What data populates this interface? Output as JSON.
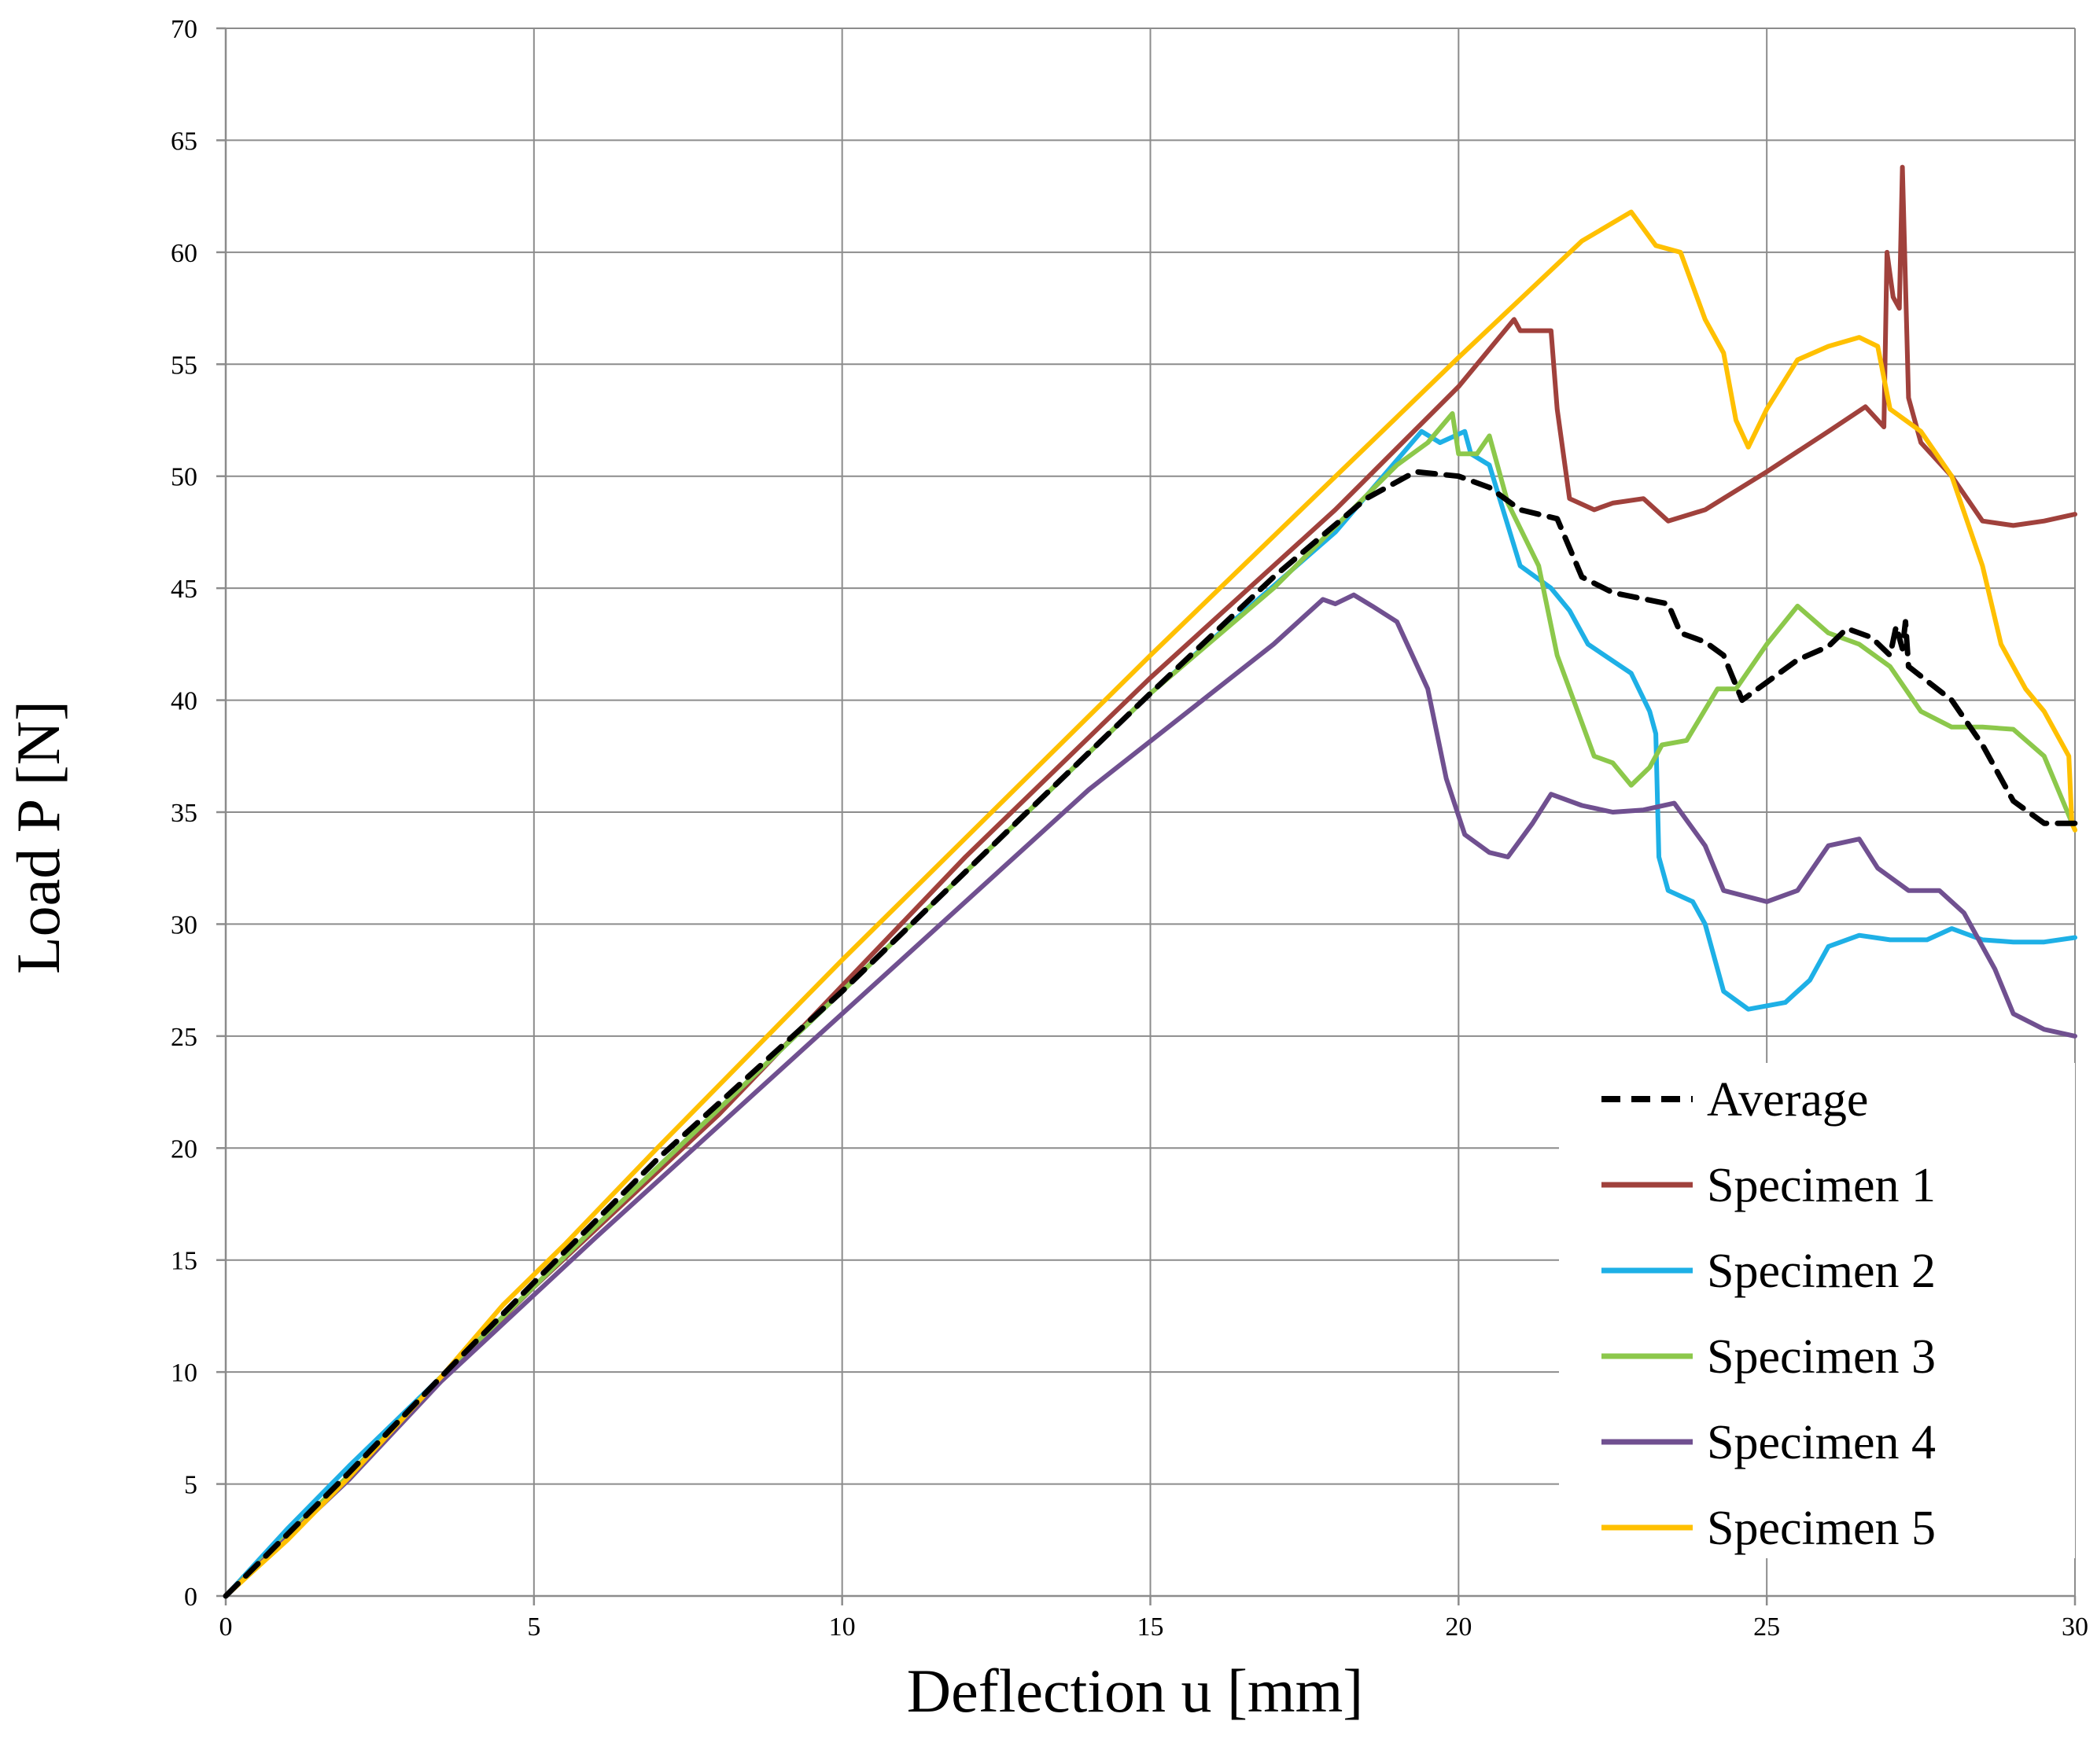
{
  "chart_data": {
    "type": "line",
    "title": "",
    "xlabel": "Deflection  u  [mm]",
    "ylabel": "Load  P  [N]",
    "xlim": [
      0,
      30
    ],
    "ylim": [
      0,
      70
    ],
    "xticks": [
      0,
      5,
      10,
      15,
      20,
      25,
      30
    ],
    "yticks": [
      0,
      5,
      10,
      15,
      20,
      25,
      30,
      35,
      40,
      45,
      50,
      55,
      60,
      65,
      70
    ],
    "grid": true,
    "legend_position": "bottom-right",
    "series": [
      {
        "name": "Average",
        "color": "#000000",
        "dash": "dashed",
        "points": [
          [
            0,
            0
          ],
          [
            2,
            5.5
          ],
          [
            3.5,
            9.8
          ],
          [
            5,
            14
          ],
          [
            7,
            19.5
          ],
          [
            10,
            27
          ],
          [
            13,
            35
          ],
          [
            15,
            40.3
          ],
          [
            17,
            45.5
          ],
          [
            18.5,
            49
          ],
          [
            19.3,
            50.2
          ],
          [
            20,
            50
          ],
          [
            20.5,
            49.5
          ],
          [
            21,
            48.5
          ],
          [
            21.6,
            48.1
          ],
          [
            22,
            45.5
          ],
          [
            22.5,
            44.8
          ],
          [
            23.4,
            44.3
          ],
          [
            23.6,
            43
          ],
          [
            24,
            42.6
          ],
          [
            24.3,
            42
          ],
          [
            24.6,
            40
          ],
          [
            25,
            40.8
          ],
          [
            25.5,
            41.8
          ],
          [
            26,
            42.4
          ],
          [
            26.3,
            43.2
          ],
          [
            26.7,
            42.8
          ],
          [
            27,
            42
          ],
          [
            27.1,
            43.3
          ],
          [
            27.2,
            42.3
          ],
          [
            27.25,
            43.5
          ],
          [
            27.3,
            41.5
          ],
          [
            28,
            40
          ],
          [
            28.5,
            38
          ],
          [
            29,
            35.5
          ],
          [
            29.5,
            34.5
          ],
          [
            30,
            34.5
          ]
        ]
      },
      {
        "name": "Specimen 1",
        "color": "#A0413C",
        "dash": "solid",
        "points": [
          [
            0,
            0
          ],
          [
            2,
            5.3
          ],
          [
            3.5,
            9.7
          ],
          [
            5,
            13.8
          ],
          [
            8,
            21.5
          ],
          [
            12,
            33
          ],
          [
            15,
            41
          ],
          [
            18,
            48.5
          ],
          [
            20,
            54
          ],
          [
            20.9,
            57
          ],
          [
            21,
            56.5
          ],
          [
            21.5,
            56.5
          ],
          [
            21.6,
            53
          ],
          [
            21.8,
            49
          ],
          [
            22.2,
            48.5
          ],
          [
            22.5,
            48.8
          ],
          [
            23,
            49
          ],
          [
            23.4,
            48
          ],
          [
            24,
            48.5
          ],
          [
            25,
            50.2
          ],
          [
            26,
            52
          ],
          [
            26.6,
            53.1
          ],
          [
            26.9,
            52.2
          ],
          [
            26.95,
            60
          ],
          [
            27.05,
            58
          ],
          [
            27.15,
            57.5
          ],
          [
            27.2,
            63.8
          ],
          [
            27.3,
            53.5
          ],
          [
            27.5,
            51.5
          ],
          [
            28,
            50
          ],
          [
            28.5,
            48
          ],
          [
            29,
            47.8
          ],
          [
            29.5,
            48
          ],
          [
            30,
            48.3
          ]
        ]
      },
      {
        "name": "Specimen 2",
        "color": "#1EB0E6",
        "dash": "solid",
        "points": [
          [
            0,
            0
          ],
          [
            1,
            3
          ],
          [
            2,
            5.8
          ],
          [
            3.5,
            9.8
          ],
          [
            6,
            16.5
          ],
          [
            10,
            27
          ],
          [
            15,
            40.3
          ],
          [
            18,
            47.5
          ],
          [
            19.4,
            52
          ],
          [
            19.7,
            51.5
          ],
          [
            20.1,
            52
          ],
          [
            20.2,
            51
          ],
          [
            20.5,
            50.5
          ],
          [
            21,
            46
          ],
          [
            21.5,
            45
          ],
          [
            21.8,
            44
          ],
          [
            22.1,
            42.5
          ],
          [
            22.8,
            41.2
          ],
          [
            23.1,
            39.5
          ],
          [
            23.2,
            38.5
          ],
          [
            23.25,
            33
          ],
          [
            23.4,
            31.5
          ],
          [
            23.8,
            31
          ],
          [
            24,
            30
          ],
          [
            24.3,
            27
          ],
          [
            24.7,
            26.2
          ],
          [
            25.3,
            26.5
          ],
          [
            25.7,
            27.5
          ],
          [
            26,
            29
          ],
          [
            26.5,
            29.5
          ],
          [
            27,
            29.3
          ],
          [
            27.6,
            29.3
          ],
          [
            28,
            29.8
          ],
          [
            28.5,
            29.3
          ],
          [
            29,
            29.2
          ],
          [
            29.5,
            29.2
          ],
          [
            30,
            29.4
          ]
        ]
      },
      {
        "name": "Specimen 3",
        "color": "#8CC84B",
        "dash": "solid",
        "points": [
          [
            0,
            0
          ],
          [
            2,
            5.4
          ],
          [
            3.5,
            9.8
          ],
          [
            6,
            16.5
          ],
          [
            10,
            27
          ],
          [
            15,
            40.3
          ],
          [
            17,
            45
          ],
          [
            19,
            50.5
          ],
          [
            19.5,
            51.5
          ],
          [
            19.9,
            52.8
          ],
          [
            20,
            51
          ],
          [
            20.3,
            51
          ],
          [
            20.5,
            51.8
          ],
          [
            20.8,
            48.8
          ],
          [
            21.3,
            46
          ],
          [
            21.6,
            42
          ],
          [
            22.2,
            37.5
          ],
          [
            22.5,
            37.2
          ],
          [
            22.8,
            36.2
          ],
          [
            23.1,
            37
          ],
          [
            23.3,
            38
          ],
          [
            23.7,
            38.2
          ],
          [
            24.2,
            40.5
          ],
          [
            24.5,
            40.5
          ],
          [
            25,
            42.5
          ],
          [
            25.5,
            44.2
          ],
          [
            26,
            43
          ],
          [
            26.5,
            42.5
          ],
          [
            27,
            41.5
          ],
          [
            27.5,
            39.5
          ],
          [
            28,
            38.8
          ],
          [
            28.5,
            38.8
          ],
          [
            29,
            38.7
          ],
          [
            29.5,
            37.5
          ],
          [
            30,
            34.2
          ]
        ]
      },
      {
        "name": "Specimen 4",
        "color": "#705090",
        "dash": "solid",
        "points": [
          [
            0,
            0
          ],
          [
            2,
            5.2
          ],
          [
            3.5,
            9.6
          ],
          [
            6,
            16
          ],
          [
            10,
            26
          ],
          [
            14,
            36
          ],
          [
            17,
            42.5
          ],
          [
            17.8,
            44.5
          ],
          [
            18,
            44.3
          ],
          [
            18.3,
            44.7
          ],
          [
            18.6,
            44.2
          ],
          [
            19,
            43.5
          ],
          [
            19.5,
            40.5
          ],
          [
            19.8,
            36.5
          ],
          [
            20.1,
            34
          ],
          [
            20.5,
            33.2
          ],
          [
            20.8,
            33
          ],
          [
            21.2,
            34.5
          ],
          [
            21.5,
            35.8
          ],
          [
            22,
            35.3
          ],
          [
            22.5,
            35
          ],
          [
            23,
            35.1
          ],
          [
            23.5,
            35.4
          ],
          [
            24,
            33.5
          ],
          [
            24.3,
            31.5
          ],
          [
            25,
            31
          ],
          [
            25.5,
            31.5
          ],
          [
            26,
            33.5
          ],
          [
            26.5,
            33.8
          ],
          [
            26.8,
            32.5
          ],
          [
            27.3,
            31.5
          ],
          [
            27.8,
            31.5
          ],
          [
            28.2,
            30.5
          ],
          [
            28.7,
            28
          ],
          [
            29,
            26
          ],
          [
            29.5,
            25.3
          ],
          [
            30,
            25
          ]
        ]
      },
      {
        "name": "Specimen 5",
        "color": "#FFC000",
        "dash": "solid",
        "points": [
          [
            0,
            0
          ],
          [
            1,
            2.5
          ],
          [
            2,
            5.3
          ],
          [
            3.5,
            9.8
          ],
          [
            4.5,
            13
          ],
          [
            5.5,
            15.7
          ],
          [
            7,
            20
          ],
          [
            10,
            28.4
          ],
          [
            15,
            42
          ],
          [
            20,
            55.3
          ],
          [
            22,
            60.5
          ],
          [
            22.8,
            61.8
          ],
          [
            23.2,
            60.3
          ],
          [
            23.6,
            60
          ],
          [
            24,
            57
          ],
          [
            24.3,
            55.5
          ],
          [
            24.5,
            52.5
          ],
          [
            24.7,
            51.3
          ],
          [
            25,
            53
          ],
          [
            25.5,
            55.2
          ],
          [
            26,
            55.8
          ],
          [
            26.5,
            56.2
          ],
          [
            26.8,
            55.8
          ],
          [
            27,
            53
          ],
          [
            27.5,
            52
          ],
          [
            28,
            50
          ],
          [
            28.5,
            46
          ],
          [
            28.8,
            42.5
          ],
          [
            29.2,
            40.5
          ],
          [
            29.5,
            39.5
          ],
          [
            29.9,
            37.5
          ],
          [
            29.95,
            34.5
          ],
          [
            30,
            34.2
          ]
        ]
      }
    ]
  }
}
